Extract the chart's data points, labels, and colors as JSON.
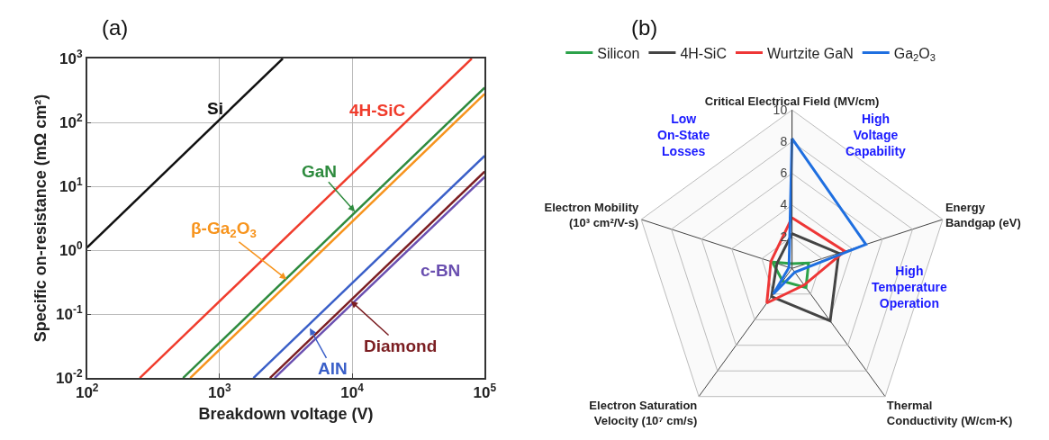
{
  "chart_data": [
    {
      "type": "line",
      "title": "(a)",
      "xlabel": "Breakdown voltage (V)",
      "ylabel": "Specific on-resistance (mΩ cm²)",
      "log": "xy",
      "grid": true,
      "legend": false,
      "xlim": [
        100,
        100000
      ],
      "ylim": [
        0.01,
        1000
      ],
      "xticks": [
        {
          "value": 100,
          "label": "10$^{2}$"
        },
        {
          "value": 1000,
          "label": "10$^{3}$"
        },
        {
          "value": 10000,
          "label": "10$^{4}$"
        },
        {
          "value": 100000,
          "label": "10$^{5}$"
        }
      ],
      "yticks": [
        {
          "value": 0.01,
          "label": "10$^{-2}$"
        },
        {
          "value": 0.1,
          "label": "10$^{-1}$"
        },
        {
          "value": 1,
          "label": "10$^{0}$"
        },
        {
          "value": 10,
          "label": "10$^{1}$"
        },
        {
          "value": 100,
          "label": "10$^{2}$"
        },
        {
          "value": 1000,
          "label": "10$^{3}$"
        }
      ],
      "series": [
        {
          "color": "#111111",
          "x": [
            100,
            3000
          ],
          "values": [
            1.1,
            1000
          ]
        },
        {
          "color": "#f03c2c",
          "x": [
            250,
            80000
          ],
          "values": [
            0.01,
            1000
          ]
        },
        {
          "color": "#2e8b3e",
          "x": [
            530,
            100000
          ],
          "values": [
            0.01,
            350
          ]
        },
        {
          "color": "#f7941d",
          "x": [
            600,
            100000
          ],
          "values": [
            0.01,
            280
          ]
        },
        {
          "color": "#3a5fc8",
          "x": [
            1800,
            100000
          ],
          "values": [
            0.01,
            30
          ]
        },
        {
          "color": "#7b1e22",
          "x": [
            2400,
            100000
          ],
          "values": [
            0.01,
            17
          ]
        },
        {
          "color": "#6a4fb0",
          "x": [
            2600,
            100000
          ],
          "values": [
            0.01,
            14
          ]
        }
      ],
      "annotations": [
        "Si",
        "4H-SiC",
        {
          "text": "GaN",
          "x": 10500,
          "y": 4
        },
        {
          "text": "β-Ga$_{2}$O$_{3}$",
          "x": 3200,
          "y": 0.35
        },
        {
          "text": "AlN",
          "x": 4800,
          "y": 0.06
        },
        {
          "text": "Diamond",
          "x": 9800,
          "y": 0.16
        },
        "c-BN"
      ]
    },
    {
      "type": "radar",
      "title": "(b)",
      "grid": true,
      "legend": "top",
      "ylim": [
        0,
        10
      ],
      "yticks": [
        2,
        4,
        6,
        8,
        10
      ],
      "categories": [
        "Critical Electrical Field (MV/cm)",
        "Energy\nBandgap (eV)",
        "Thermal\nConductivity (W/cm-K)",
        "Electron Saturation\nVelocity (10⁷ cm/s)",
        "Electron Mobility\n(10³ cm²/V-s)"
      ],
      "series": [
        {
          "name": "Silicon",
          "color": "#2ca24a",
          "values": [
            0.3,
            1.1,
            1.5,
            1.0,
            1.3
          ]
        },
        {
          "name": "4H-SiC",
          "color": "#444444",
          "values": [
            2.2,
            3.1,
            4.1,
            2.2,
            1.0
          ]
        },
        {
          "name": "Wurtzite GaN",
          "color": "#ee3636",
          "values": [
            3.2,
            3.5,
            1.3,
            2.7,
            1.4
          ]
        },
        {
          "name": "Ga$_{2}$O$_{3}$",
          "color": "#1f6fe0",
          "values": [
            8.2,
            4.9,
            0.3,
            2.0,
            0.2
          ]
        }
      ],
      "annotations": [
        "Low\nOn-State\nLosses",
        "High\nVoltage\nCapability",
        "High\nTemperature\nOperation"
      ]
    }
  ]
}
